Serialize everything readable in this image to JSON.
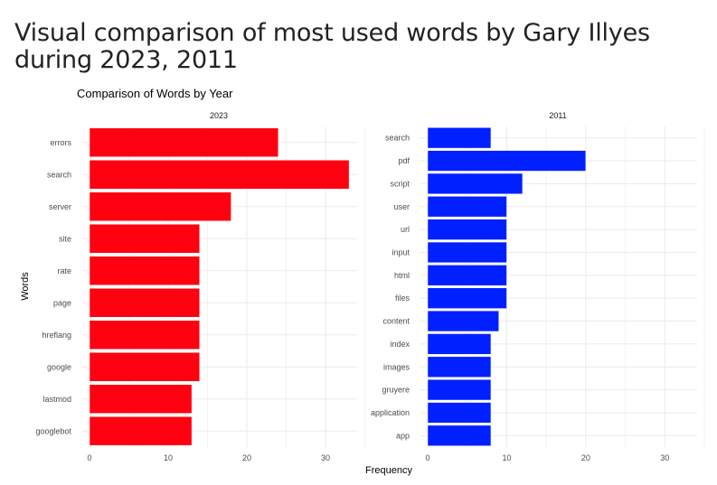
{
  "page": {
    "title": "Visual comparison of most used words by Gary Illyes during 2023, 2011"
  },
  "chart_data": {
    "type": "bar",
    "orientation": "horizontal",
    "title": "Comparison of Words by Year",
    "xlabel": "Frequency",
    "ylabel": "Words",
    "xlim": [
      0,
      33
    ],
    "x_ticks": [
      0,
      10,
      20,
      30
    ],
    "grid": true,
    "legend": "none",
    "facets": [
      {
        "label": "2023",
        "color": "#ff0010",
        "categories": [
          "errors",
          "search",
          "server",
          "site",
          "rate",
          "page",
          "hreflang",
          "google",
          "lastmod",
          "googlebot"
        ],
        "values": [
          24,
          33,
          18,
          14,
          14,
          14,
          14,
          14,
          13,
          13
        ]
      },
      {
        "label": "2011",
        "color": "#0020ff",
        "categories": [
          "search",
          "pdf",
          "script",
          "user",
          "url",
          "input",
          "html",
          "files",
          "content",
          "index",
          "images",
          "gruyere",
          "application",
          "app"
        ],
        "values": [
          8,
          20,
          12,
          10,
          10,
          10,
          10,
          10,
          9,
          8,
          8,
          8,
          8,
          8
        ]
      }
    ]
  }
}
